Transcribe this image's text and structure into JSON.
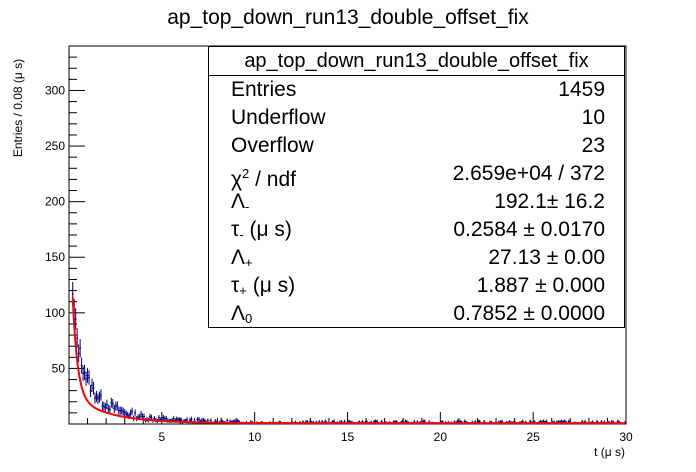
{
  "chart_data": {
    "type": "histogram",
    "title": "ap_top_down_run13_double_offset_fix",
    "xlabel": "t (μ s)",
    "ylabel": "Entries / 0.08 (μ s)",
    "xlim": [
      0,
      30
    ],
    "ylim": [
      0,
      340
    ],
    "x_ticks": [
      5,
      10,
      15,
      20,
      25,
      30
    ],
    "y_ticks": [
      50,
      100,
      150,
      200,
      250,
      300
    ],
    "bin_width": 0.08,
    "bins_sampled": [
      {
        "x": 0.2,
        "y": 112
      },
      {
        "x": 0.3,
        "y": 98
      },
      {
        "x": 0.4,
        "y": 80
      },
      {
        "x": 0.5,
        "y": 72
      },
      {
        "x": 0.6,
        "y": 62
      },
      {
        "x": 0.7,
        "y": 55
      },
      {
        "x": 0.8,
        "y": 50
      },
      {
        "x": 0.9,
        "y": 44
      },
      {
        "x": 1.0,
        "y": 40
      },
      {
        "x": 1.2,
        "y": 33
      },
      {
        "x": 1.4,
        "y": 28
      },
      {
        "x": 1.6,
        "y": 24
      },
      {
        "x": 1.8,
        "y": 20
      },
      {
        "x": 2.0,
        "y": 18
      },
      {
        "x": 2.5,
        "y": 14
      },
      {
        "x": 3.0,
        "y": 10
      },
      {
        "x": 3.5,
        "y": 8
      },
      {
        "x": 4.0,
        "y": 6
      },
      {
        "x": 5.0,
        "y": 4
      },
      {
        "x": 6.0,
        "y": 3
      },
      {
        "x": 8.0,
        "y": 2
      },
      {
        "x": 10.0,
        "y": 1
      },
      {
        "x": 15.0,
        "y": 1
      },
      {
        "x": 20.0,
        "y": 1
      },
      {
        "x": 25.0,
        "y": 1
      },
      {
        "x": 30.0,
        "y": 1
      }
    ],
    "fit": {
      "function": "L_minus*exp(-t/tau_minus) + L_plus*exp(-t/tau_plus) + L0",
      "color": "#ff0000",
      "L_minus": 192.1,
      "tau_minus": 0.2584,
      "L_plus": 27.13,
      "tau_plus": 1.887,
      "L0": 0.7852
    },
    "colors": {
      "data": "#000080",
      "fit": "#ff0000",
      "axis": "#000000"
    }
  },
  "stats": {
    "title": "ap_top_down_run13_double_offset_fix",
    "rows": [
      {
        "label": "Entries",
        "value": "1459"
      },
      {
        "label": "Underflow",
        "value": "10"
      },
      {
        "label": "Overflow",
        "value": "23"
      },
      {
        "label_main": "χ",
        "label_sup": "2",
        "label_rest": " / ndf",
        "value": "2.659e+04 / 372"
      },
      {
        "label_main": "Λ",
        "label_sub": "-",
        "label_rest": "",
        "value": "192.1± 16.2"
      },
      {
        "label_main": "τ",
        "label_sub": "-",
        "label_rest": " (μ s)",
        "value": "0.2584 ± 0.0170"
      },
      {
        "label_main": "Λ",
        "label_sub": "+",
        "label_rest": "",
        "value": "27.13 ± 0.00"
      },
      {
        "label_main": "τ",
        "label_sub": "+",
        "label_rest": " (μ s)",
        "value": "1.887 ± 0.000"
      },
      {
        "label_main": "Λ",
        "label_sub": "0",
        "label_rest": "",
        "value": "0.7852 ± 0.0000"
      }
    ]
  }
}
